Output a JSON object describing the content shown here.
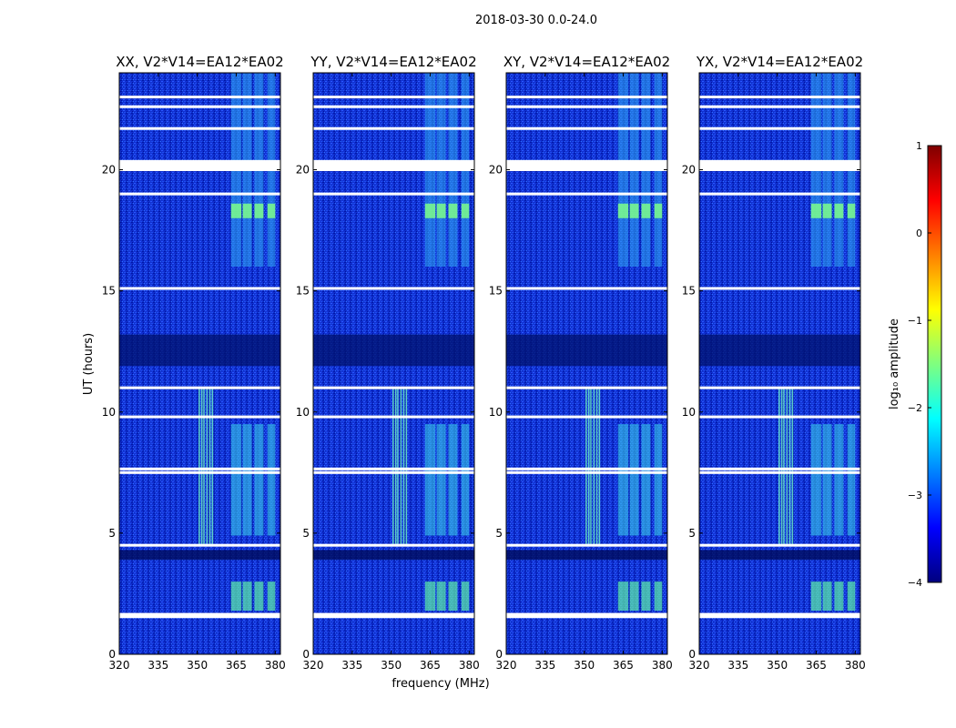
{
  "figure": {
    "suptitle": "2018-03-30 0.0-24.0",
    "xlabel": "frequency (MHz)",
    "ylabel": "UT (hours)"
  },
  "chart_data": [
    {
      "type": "heatmap",
      "title": "XX, V2*V14=EA12*EA02",
      "xlabel": "frequency (MHz)",
      "ylabel": "UT (hours)",
      "xlim": [
        320,
        382
      ],
      "ylim": [
        0,
        24
      ],
      "xticks": [
        320,
        335,
        350,
        365,
        380
      ],
      "yticks": [
        0,
        5,
        10,
        15,
        20
      ],
      "colormap": "jet",
      "color_range": [
        -4,
        1
      ],
      "flagged_hours": [
        1.55,
        1.65,
        4.5,
        7.5,
        7.65,
        9.8,
        11.0,
        15.1,
        19.0,
        20.0,
        20.2,
        21.7,
        22.6,
        23.0
      ],
      "rfi_bands_mhz": [
        [
          363,
          367
        ],
        [
          367.5,
          371
        ],
        [
          372,
          375.5
        ],
        [
          377,
          380
        ]
      ],
      "notes": "strong features near 350–356 MHz between ~4.5 and ~11 UT"
    },
    {
      "type": "heatmap",
      "title": "YY, V2*V14=EA12*EA02",
      "xlabel": "frequency (MHz)",
      "ylabel": "",
      "xlim": [
        320,
        382
      ],
      "ylim": [
        0,
        24
      ],
      "xticks": [
        320,
        335,
        350,
        365,
        380
      ],
      "yticks": [
        0,
        5,
        10,
        15,
        20
      ],
      "colormap": "jet",
      "color_range": [
        -4,
        1
      ],
      "flagged_hours": [
        1.55,
        1.65,
        4.5,
        7.5,
        7.65,
        9.8,
        11.0,
        15.1,
        19.0,
        20.0,
        20.2,
        21.7,
        22.6,
        23.0
      ],
      "rfi_bands_mhz": [
        [
          363,
          367
        ],
        [
          367.5,
          371
        ],
        [
          372,
          375.5
        ],
        [
          377,
          380
        ]
      ]
    },
    {
      "type": "heatmap",
      "title": "XY, V2*V14=EA12*EA02",
      "xlabel": "frequency (MHz)",
      "ylabel": "",
      "xlim": [
        320,
        382
      ],
      "ylim": [
        0,
        24
      ],
      "xticks": [
        320,
        335,
        350,
        365,
        380
      ],
      "yticks": [
        0,
        5,
        10,
        15,
        20
      ],
      "colormap": "jet",
      "color_range": [
        -4,
        1
      ],
      "flagged_hours": [
        1.55,
        1.65,
        4.5,
        7.5,
        7.65,
        9.8,
        11.0,
        15.1,
        19.0,
        20.0,
        20.2,
        21.7,
        22.6,
        23.0
      ],
      "rfi_bands_mhz": [
        [
          363,
          367
        ],
        [
          367.5,
          371
        ],
        [
          372,
          375.5
        ],
        [
          377,
          380
        ]
      ]
    },
    {
      "type": "heatmap",
      "title": "YX, V2*V14=EA12*EA02",
      "xlabel": "frequency (MHz)",
      "ylabel": "",
      "xlim": [
        320,
        382
      ],
      "ylim": [
        0,
        24
      ],
      "xticks": [
        320,
        335,
        350,
        365,
        380
      ],
      "yticks": [
        0,
        5,
        10,
        15,
        20
      ],
      "colormap": "jet",
      "color_range": [
        -4,
        1
      ],
      "flagged_hours": [
        1.55,
        1.65,
        4.5,
        7.5,
        7.65,
        9.8,
        11.0,
        15.1,
        19.0,
        20.0,
        20.2,
        21.7,
        22.6,
        23.0
      ],
      "rfi_bands_mhz": [
        [
          363,
          367
        ],
        [
          367.5,
          371
        ],
        [
          372,
          375.5
        ],
        [
          377,
          380
        ]
      ]
    }
  ],
  "colorbar": {
    "label": "log₁₀ amplitude",
    "ticks": [
      {
        "value": 1,
        "label": "1"
      },
      {
        "value": 0,
        "label": "0"
      },
      {
        "value": -1,
        "label": "−1"
      },
      {
        "value": -2,
        "label": "−2"
      },
      {
        "value": -3,
        "label": "−3"
      },
      {
        "value": -4,
        "label": "−4"
      }
    ],
    "colors": [
      "#00007f",
      "#0000ff",
      "#007fff",
      "#00ffff",
      "#7fff7f",
      "#ffff00",
      "#ff7f00",
      "#ff0000",
      "#7f0000"
    ]
  }
}
